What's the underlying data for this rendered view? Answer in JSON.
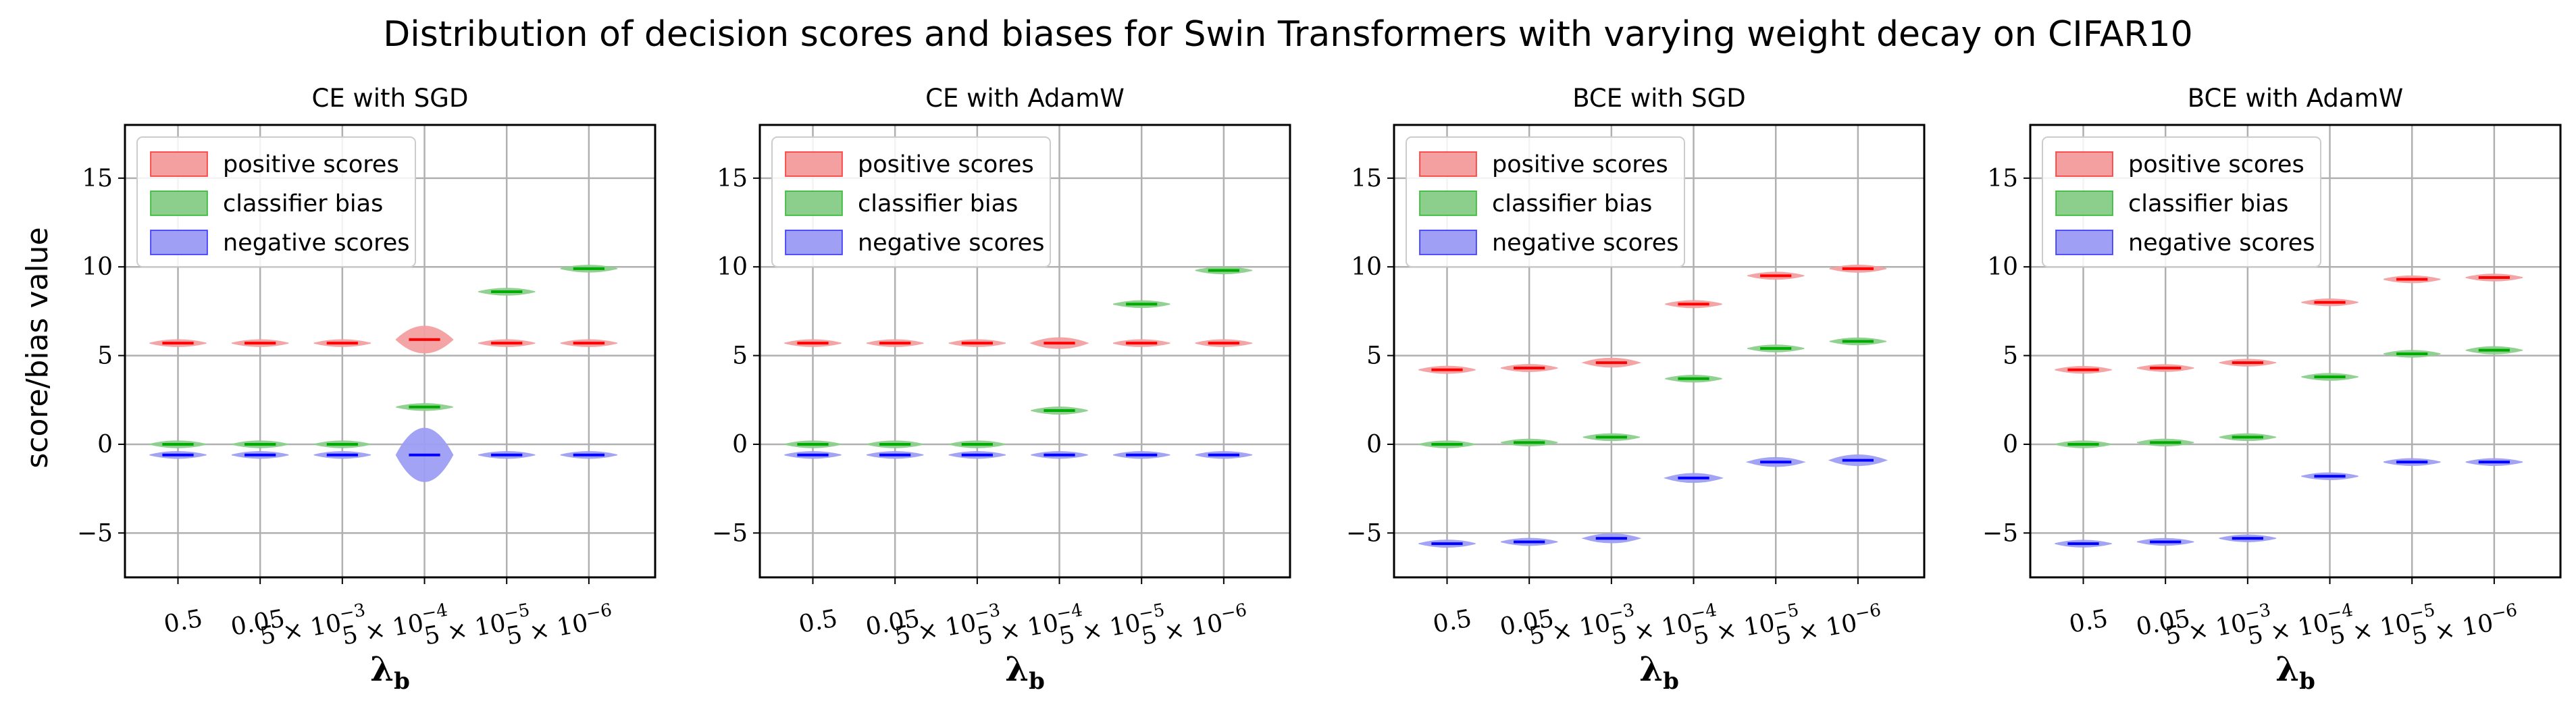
{
  "chart_data": {
    "title": "Distribution of decision scores and biases for Swin Transformers with varying weight decay on CIFAR10",
    "ylabel": "score/bias value",
    "xlabel": "λ_b",
    "ylim": [
      -7.5,
      18
    ],
    "yticks": [
      -5,
      0,
      5,
      10,
      15
    ],
    "ytick_labels": [
      "−5",
      "0",
      "5",
      "10",
      "15"
    ],
    "grid": true,
    "legend": {
      "placement": "top-left",
      "entries": [
        {
          "key": "positive",
          "label": "positive scores",
          "color": "#ff0000",
          "fill": "#f4a0a0"
        },
        {
          "key": "bias",
          "label": "classifier bias",
          "color": "#00aa00",
          "fill": "#8ccf8c"
        },
        {
          "key": "negative",
          "label": "negative scores",
          "color": "#0000ff",
          "fill": "#9f9ff5"
        }
      ]
    },
    "categories": [
      "0.5",
      "0.05",
      "5 × 10⁻³",
      "5 × 10⁻⁴",
      "5 × 10⁻⁵",
      "5 × 10⁻⁶"
    ],
    "category_labels": [
      {
        "main": "0.5",
        "exp": ""
      },
      {
        "main": "0.05",
        "exp": ""
      },
      {
        "main": "5 × 10",
        "exp": "−3"
      },
      {
        "main": "5 × 10",
        "exp": "−4"
      },
      {
        "main": "5 × 10",
        "exp": "−5"
      },
      {
        "main": "5 × 10",
        "exp": "−6"
      }
    ],
    "panels": [
      {
        "title": "CE with SGD",
        "type": "violin",
        "series": [
          {
            "name": "positive scores",
            "values": [
              5.7,
              5.7,
              5.7,
              5.9,
              5.7,
              5.7
            ],
            "spread": [
              0.15,
              0.15,
              0.15,
              0.75,
              0.15,
              0.15
            ]
          },
          {
            "name": "classifier bias",
            "values": [
              0.0,
              0.0,
              0.0,
              2.1,
              8.6,
              9.9
            ],
            "spread": [
              0.08,
              0.08,
              0.08,
              0.18,
              0.1,
              0.1
            ]
          },
          {
            "name": "negative scores",
            "values": [
              -0.6,
              -0.6,
              -0.6,
              -0.6,
              -0.6,
              -0.6
            ],
            "spread": [
              0.15,
              0.15,
              0.15,
              1.5,
              0.15,
              0.15
            ]
          }
        ]
      },
      {
        "title": "CE with AdamW",
        "type": "violin",
        "series": [
          {
            "name": "positive scores",
            "values": [
              5.7,
              5.7,
              5.7,
              5.7,
              5.7,
              5.7
            ],
            "spread": [
              0.12,
              0.12,
              0.12,
              0.3,
              0.12,
              0.12
            ]
          },
          {
            "name": "classifier bias",
            "values": [
              0.0,
              0.0,
              0.0,
              1.9,
              7.9,
              9.8
            ],
            "spread": [
              0.08,
              0.08,
              0.08,
              0.2,
              0.1,
              0.1
            ]
          },
          {
            "name": "negative scores",
            "values": [
              -0.6,
              -0.6,
              -0.6,
              -0.6,
              -0.6,
              -0.6
            ],
            "spread": [
              0.12,
              0.12,
              0.12,
              0.15,
              0.12,
              0.12
            ]
          }
        ]
      },
      {
        "title": "BCE with SGD",
        "type": "violin",
        "series": [
          {
            "name": "positive scores",
            "values": [
              4.2,
              4.3,
              4.6,
              7.9,
              9.5,
              9.9
            ],
            "spread": [
              0.2,
              0.2,
              0.25,
              0.2,
              0.2,
              0.2
            ]
          },
          {
            "name": "classifier bias",
            "values": [
              0.0,
              0.1,
              0.4,
              3.7,
              5.4,
              5.8
            ],
            "spread": [
              0.08,
              0.08,
              0.1,
              0.12,
              0.1,
              0.1
            ]
          },
          {
            "name": "negative scores",
            "values": [
              -5.6,
              -5.5,
              -5.3,
              -1.9,
              -1.0,
              -0.9
            ],
            "spread": [
              0.2,
              0.2,
              0.25,
              0.25,
              0.25,
              0.3
            ]
          }
        ]
      },
      {
        "title": "BCE with AdamW",
        "type": "violin",
        "series": [
          {
            "name": "positive scores",
            "values": [
              4.2,
              4.3,
              4.6,
              8.0,
              9.3,
              9.4
            ],
            "spread": [
              0.15,
              0.15,
              0.15,
              0.12,
              0.12,
              0.15
            ]
          },
          {
            "name": "classifier bias",
            "values": [
              0.0,
              0.1,
              0.4,
              3.8,
              5.1,
              5.3
            ],
            "spread": [
              0.08,
              0.08,
              0.1,
              0.12,
              0.15,
              0.2
            ]
          },
          {
            "name": "negative scores",
            "values": [
              -5.6,
              -5.5,
              -5.3,
              -1.8,
              -1.0,
              -1.0
            ],
            "spread": [
              0.12,
              0.12,
              0.15,
              0.12,
              0.12,
              0.12
            ]
          }
        ]
      }
    ]
  }
}
